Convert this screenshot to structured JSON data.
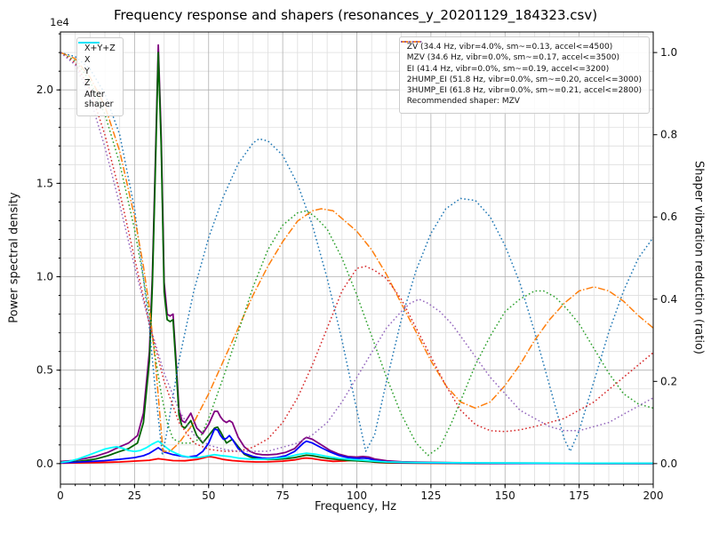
{
  "chart_data": {
    "type": "line",
    "title": "Frequency response and shapers (resonances_y_20201129_184323.csv)",
    "xlabel": "Frequency, Hz",
    "ylabel_left": "Power spectral density",
    "ylabel_right": "Shaper vibration reduction (ratio)",
    "offset_label": "1e4",
    "xlim": [
      0,
      200
    ],
    "ylim_left": [
      -1100,
      23100
    ],
    "ylim_right": [
      -0.05,
      1.05
    ],
    "x_ticks": {
      "values": [
        0,
        25,
        50,
        75,
        100,
        125,
        150,
        175,
        200
      ],
      "labels": [
        "0",
        "25",
        "50",
        "75",
        "100",
        "125",
        "150",
        "175",
        "200"
      ],
      "minor_step": 5
    },
    "left_ticks": {
      "values": [
        0,
        5000,
        10000,
        15000,
        20000
      ],
      "labels": [
        "0.0",
        "0.5",
        "1.0",
        "1.5",
        "2.0"
      ],
      "minor_step": 1000
    },
    "right_ticks": {
      "values": [
        0,
        0.2,
        0.4,
        0.6,
        0.8,
        1.0
      ],
      "labels": [
        "0.0",
        "0.2",
        "0.4",
        "0.6",
        "0.8",
        "1.0"
      ]
    },
    "grid": {
      "major_color": "#b0b0b0",
      "minor_color": "#dedede"
    },
    "legend_note": "Recommended shaper: MZV",
    "psd_series": [
      {
        "name": "x+y+z",
        "label": "X+Y+Z",
        "color": "#800080",
        "style": "solid",
        "axis": "left",
        "x": [
          0,
          4,
          8,
          12,
          16,
          20,
          23,
          26,
          28,
          30,
          31,
          32,
          33,
          34,
          35,
          36,
          37,
          38,
          39,
          40,
          41,
          42,
          44,
          46,
          48,
          50,
          52,
          53,
          54,
          55,
          56,
          57,
          58,
          60,
          62,
          64,
          66,
          68,
          70,
          73,
          76,
          79,
          82,
          83,
          85,
          88,
          91,
          94,
          97,
          100,
          102,
          104,
          106,
          110,
          115,
          120,
          130,
          140,
          160,
          180,
          200
        ],
        "y": [
          110,
          160,
          260,
          400,
          600,
          900,
          1100,
          1500,
          2700,
          6000,
          10000,
          16000,
          22400,
          17500,
          9700,
          8000,
          7900,
          8000,
          5500,
          2900,
          2300,
          2200,
          2700,
          1900,
          1600,
          2100,
          2800,
          2800,
          2500,
          2300,
          2200,
          2300,
          2200,
          1400,
          900,
          650,
          520,
          480,
          470,
          500,
          600,
          800,
          1300,
          1400,
          1300,
          1000,
          700,
          500,
          380,
          350,
          380,
          350,
          250,
          150,
          100,
          80,
          55,
          40,
          25,
          15,
          10
        ]
      },
      {
        "name": "x",
        "label": "X",
        "color": "#ff0000",
        "style": "solid",
        "axis": "left",
        "x": [
          0,
          10,
          20,
          30,
          33,
          38,
          42,
          46,
          48,
          50,
          52,
          55,
          58,
          62,
          66,
          70,
          75,
          79,
          82,
          83,
          85,
          88,
          92,
          96,
          99,
          101,
          103,
          106,
          110,
          120,
          140,
          200
        ],
        "y": [
          25,
          45,
          90,
          180,
          260,
          160,
          150,
          220,
          300,
          380,
          330,
          220,
          160,
          110,
          90,
          95,
          130,
          200,
          290,
          300,
          270,
          190,
          120,
          140,
          200,
          200,
          150,
          80,
          40,
          20,
          10,
          5
        ]
      },
      {
        "name": "y",
        "label": "Y",
        "color": "#006400",
        "style": "solid",
        "axis": "left",
        "x": [
          0,
          4,
          8,
          12,
          16,
          20,
          23,
          26,
          28,
          30,
          31,
          32,
          33,
          34,
          35,
          36,
          37,
          38,
          39,
          40,
          41,
          42,
          44,
          46,
          48,
          50,
          52,
          53,
          54,
          56,
          58,
          60,
          62,
          64,
          66,
          68,
          70,
          73,
          76,
          79,
          82,
          83,
          85,
          88,
          91,
          94,
          97,
          100,
          103,
          106,
          110,
          115,
          120,
          130,
          140,
          160,
          180,
          200
        ],
        "y": [
          60,
          90,
          150,
          250,
          420,
          650,
          800,
          1100,
          2200,
          5500,
          9500,
          15500,
          22000,
          17000,
          9200,
          7700,
          7600,
          7700,
          5200,
          2600,
          2000,
          1900,
          2300,
          1500,
          1100,
          1500,
          1900,
          1950,
          1700,
          1100,
          1300,
          900,
          500,
          350,
          280,
          240,
          220,
          230,
          260,
          320,
          420,
          450,
          420,
          330,
          260,
          210,
          170,
          150,
          120,
          90,
          60,
          45,
          35,
          25,
          18,
          12,
          8,
          6
        ]
      },
      {
        "name": "z",
        "label": "Z",
        "color": "#0000ff",
        "style": "solid",
        "axis": "left",
        "x": [
          0,
          5,
          10,
          15,
          20,
          25,
          28,
          30,
          32,
          33,
          35,
          38,
          40,
          43,
          46,
          48,
          50,
          52,
          53,
          54,
          55,
          56,
          57,
          58,
          60,
          62,
          65,
          68,
          70,
          73,
          76,
          79,
          82,
          83,
          85,
          88,
          91,
          94,
          97,
          100,
          102,
          104,
          106,
          110,
          115,
          120,
          130,
          140,
          160,
          200
        ],
        "y": [
          40,
          70,
          110,
          160,
          230,
          320,
          420,
          550,
          750,
          850,
          620,
          480,
          420,
          350,
          420,
          650,
          1100,
          1850,
          1800,
          1500,
          1300,
          1350,
          1500,
          1300,
          800,
          550,
          380,
          300,
          280,
          320,
          420,
          650,
          1100,
          1200,
          1100,
          850,
          620,
          430,
          320,
          280,
          300,
          270,
          180,
          90,
          60,
          45,
          30,
          20,
          12,
          8
        ]
      },
      {
        "name": "after-shaper",
        "label": "After\nshaper",
        "color": "#00ffff",
        "style": "solid",
        "axis": "left",
        "x": [
          0,
          3,
          6,
          9,
          12,
          15,
          17,
          19,
          21,
          23,
          25,
          27,
          29,
          31,
          33,
          35,
          37,
          39,
          41,
          44,
          47,
          50,
          52,
          54,
          57,
          60,
          64,
          68,
          72,
          76,
          80,
          83,
          86,
          90,
          94,
          98,
          102,
          106,
          110,
          120,
          140,
          160,
          200
        ],
        "y": [
          60,
          120,
          250,
          420,
          600,
          780,
          850,
          900,
          820,
          700,
          650,
          700,
          850,
          1050,
          1200,
          950,
          700,
          550,
          420,
          330,
          330,
          420,
          480,
          430,
          380,
          300,
          240,
          230,
          260,
          330,
          480,
          560,
          500,
          380,
          280,
          220,
          180,
          130,
          90,
          60,
          40,
          25,
          15
        ]
      }
    ],
    "shaper_series": [
      {
        "name": "zv",
        "label": "ZV (34.4 Hz, vibr=4.0%, sm~=0.13, accel<=4500)",
        "color": "#1f77b4",
        "style": "dotted",
        "axis": "right",
        "x": [
          0,
          5,
          10,
          15,
          20,
          25,
          28,
          30,
          32,
          34.4,
          36,
          40,
          45,
          50,
          55,
          60,
          65,
          67,
          70,
          75,
          80,
          85,
          90,
          95,
          100,
          103,
          106,
          110,
          115,
          120,
          125,
          130,
          135,
          140,
          145,
          150,
          155,
          160,
          165,
          170,
          172,
          175,
          180,
          185,
          190,
          195,
          200
        ],
        "y": [
          1.0,
          0.99,
          0.96,
          0.9,
          0.8,
          0.62,
          0.45,
          0.33,
          0.18,
          0.02,
          0.08,
          0.25,
          0.42,
          0.55,
          0.65,
          0.73,
          0.78,
          0.79,
          0.785,
          0.75,
          0.68,
          0.58,
          0.45,
          0.3,
          0.13,
          0.03,
          0.07,
          0.2,
          0.35,
          0.47,
          0.56,
          0.62,
          0.645,
          0.64,
          0.6,
          0.53,
          0.44,
          0.32,
          0.19,
          0.06,
          0.03,
          0.08,
          0.2,
          0.32,
          0.42,
          0.5,
          0.55
        ]
      },
      {
        "name": "mzv",
        "label": "MZV (34.6 Hz, vibr=0.0%, sm~=0.17, accel<=3500)",
        "color": "#ff7f0e",
        "style": "dashdot",
        "axis": "right",
        "x": [
          0,
          5,
          10,
          15,
          20,
          25,
          28,
          30,
          32,
          34.6,
          37,
          40,
          45,
          50,
          55,
          60,
          65,
          70,
          75,
          80,
          85,
          88,
          92,
          96,
          100,
          105,
          110,
          115,
          120,
          125,
          130,
          135,
          140,
          145,
          150,
          155,
          160,
          165,
          170,
          175,
          180,
          185,
          190,
          195,
          200
        ],
        "y": [
          1.0,
          0.985,
          0.94,
          0.87,
          0.76,
          0.6,
          0.48,
          0.38,
          0.25,
          0.03,
          0.03,
          0.05,
          0.1,
          0.17,
          0.25,
          0.33,
          0.41,
          0.48,
          0.54,
          0.59,
          0.615,
          0.62,
          0.615,
          0.59,
          0.565,
          0.52,
          0.46,
          0.39,
          0.32,
          0.25,
          0.19,
          0.15,
          0.135,
          0.15,
          0.19,
          0.24,
          0.3,
          0.35,
          0.39,
          0.42,
          0.43,
          0.42,
          0.395,
          0.36,
          0.33
        ]
      },
      {
        "name": "ei",
        "label": "EI (41.4 Hz, vibr=0.0%, sm~=0.19, accel<=3200)",
        "color": "#2ca02c",
        "style": "dotted",
        "axis": "right",
        "x": [
          0,
          5,
          10,
          15,
          20,
          25,
          28,
          30,
          32,
          34,
          36,
          38,
          41,
          44,
          47,
          50,
          55,
          60,
          65,
          70,
          75,
          80,
          83,
          86,
          90,
          95,
          100,
          105,
          110,
          115,
          120,
          124,
          128,
          132,
          136,
          140,
          145,
          150,
          155,
          160,
          163,
          167,
          171,
          175,
          180,
          185,
          190,
          195,
          200
        ],
        "y": [
          1.0,
          0.98,
          0.93,
          0.85,
          0.73,
          0.57,
          0.45,
          0.36,
          0.26,
          0.17,
          0.1,
          0.06,
          0.05,
          0.05,
          0.06,
          0.11,
          0.21,
          0.32,
          0.43,
          0.52,
          0.58,
          0.61,
          0.615,
          0.6,
          0.57,
          0.5,
          0.41,
          0.31,
          0.21,
          0.12,
          0.05,
          0.02,
          0.04,
          0.1,
          0.17,
          0.24,
          0.31,
          0.37,
          0.4,
          0.42,
          0.42,
          0.405,
          0.375,
          0.34,
          0.28,
          0.22,
          0.17,
          0.145,
          0.135
        ]
      },
      {
        "name": "2hump-ei",
        "label": "2HUMP_EI (51.8 Hz, vibr=0.0%, sm~=0.20, accel<=3000)",
        "color": "#d62728",
        "style": "dotted",
        "axis": "right",
        "x": [
          0,
          5,
          10,
          15,
          20,
          25,
          30,
          35,
          40,
          45,
          50,
          55,
          60,
          65,
          70,
          75,
          80,
          85,
          90,
          95,
          100,
          103,
          106,
          110,
          115,
          120,
          125,
          130,
          135,
          140,
          145,
          150,
          155,
          160,
          165,
          170,
          175,
          180,
          185,
          190,
          195,
          200
        ],
        "y": [
          1.0,
          0.975,
          0.91,
          0.8,
          0.66,
          0.5,
          0.34,
          0.2,
          0.1,
          0.05,
          0.035,
          0.03,
          0.03,
          0.04,
          0.06,
          0.1,
          0.16,
          0.24,
          0.33,
          0.42,
          0.475,
          0.48,
          0.47,
          0.45,
          0.4,
          0.33,
          0.26,
          0.19,
          0.13,
          0.095,
          0.08,
          0.078,
          0.082,
          0.09,
          0.1,
          0.11,
          0.13,
          0.15,
          0.18,
          0.21,
          0.24,
          0.27
        ]
      },
      {
        "name": "3hump-ei",
        "label": "3HUMP_EI (61.8 Hz, vibr=0.0%, sm~=0.21, accel<=2800)",
        "color": "#9467bd",
        "style": "dotted",
        "axis": "right",
        "x": [
          0,
          5,
          10,
          15,
          20,
          25,
          30,
          35,
          40,
          45,
          50,
          55,
          60,
          65,
          70,
          75,
          80,
          85,
          90,
          95,
          100,
          105,
          110,
          115,
          118,
          121,
          124,
          128,
          132,
          136,
          140,
          145,
          150,
          155,
          160,
          165,
          170,
          175,
          180,
          185,
          190,
          195,
          200
        ],
        "y": [
          1.0,
          0.97,
          0.89,
          0.77,
          0.63,
          0.48,
          0.34,
          0.22,
          0.13,
          0.07,
          0.045,
          0.035,
          0.03,
          0.03,
          0.03,
          0.04,
          0.05,
          0.07,
          0.1,
          0.15,
          0.21,
          0.27,
          0.33,
          0.37,
          0.39,
          0.4,
          0.39,
          0.37,
          0.34,
          0.3,
          0.26,
          0.21,
          0.17,
          0.13,
          0.11,
          0.09,
          0.08,
          0.08,
          0.09,
          0.1,
          0.12,
          0.14,
          0.16
        ]
      }
    ]
  }
}
